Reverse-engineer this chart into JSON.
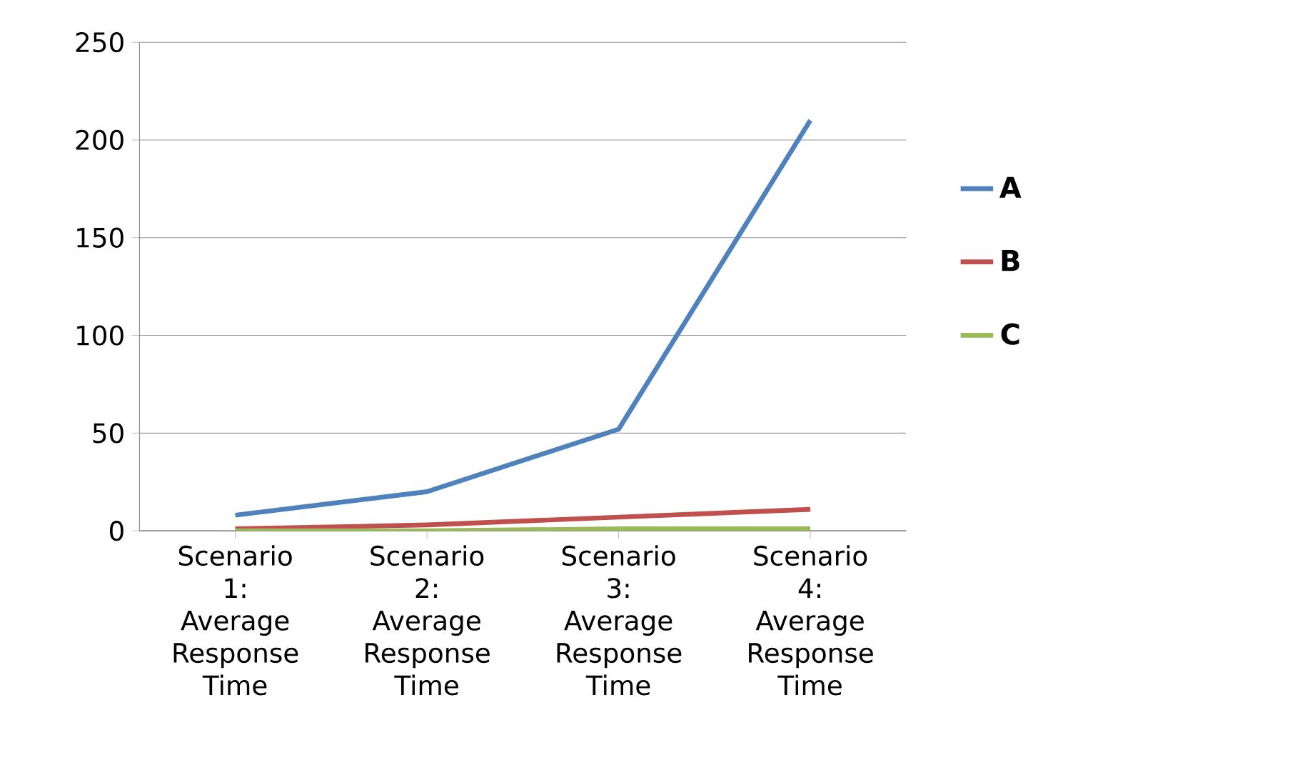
{
  "chart_data": {
    "type": "line",
    "categories": [
      "Scenario 1: Average Response Time",
      "Scenario 2: Average Response Time",
      "Scenario 3: Average Response Time",
      "Scenario 4: Average Response Time"
    ],
    "series": [
      {
        "name": "A",
        "color": "#4f81bd",
        "values": [
          8,
          20,
          52,
          210
        ]
      },
      {
        "name": "B",
        "color": "#c0504d",
        "values": [
          1,
          3,
          7,
          11
        ]
      },
      {
        "name": "C",
        "color": "#9bbb59",
        "values": [
          0,
          0,
          1,
          1
        ]
      }
    ],
    "ylim": [
      0,
      250
    ],
    "yticks": [
      0,
      50,
      100,
      150,
      200,
      250
    ],
    "grid": "y",
    "legend": "right",
    "marker": "none",
    "line_style": "solid"
  }
}
